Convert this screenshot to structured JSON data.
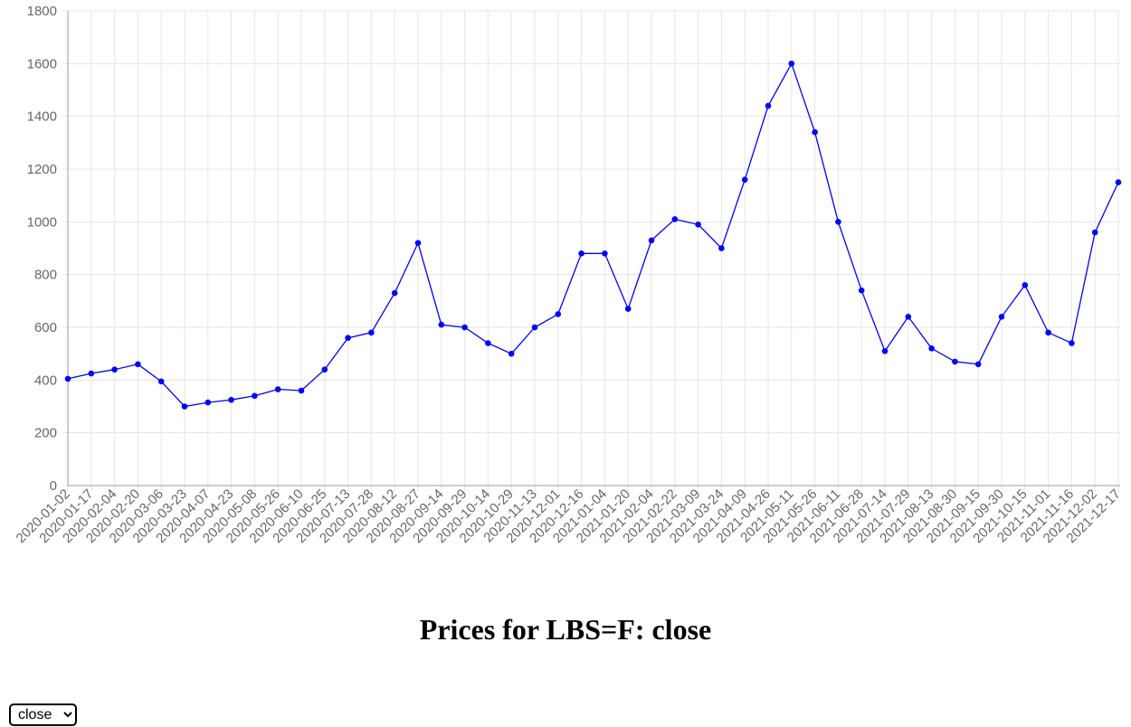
{
  "page": {
    "title": "Prices for LBS=F: close",
    "select_value": "close",
    "select_options": [
      "close"
    ]
  },
  "chart_data": {
    "type": "line",
    "title": "",
    "xlabel": "",
    "ylabel": "",
    "ylim": [
      0,
      1800
    ],
    "yticks": [
      0,
      200,
      400,
      600,
      800,
      1000,
      1200,
      1400,
      1600,
      1800
    ],
    "x_tick_labels": [
      "2020-01-02",
      "2020-01-17",
      "2020-02-04",
      "2020-02-20",
      "2020-03-06",
      "2020-03-23",
      "2020-04-07",
      "2020-04-23",
      "2020-05-08",
      "2020-05-26",
      "2020-06-10",
      "2020-06-25",
      "2020-07-13",
      "2020-07-28",
      "2020-08-12",
      "2020-08-27",
      "2020-09-14",
      "2020-09-29",
      "2020-10-14",
      "2020-10-29",
      "2020-11-13",
      "2020-12-01",
      "2020-12-16",
      "2021-01-04",
      "2021-01-20",
      "2021-02-04",
      "2021-02-22",
      "2021-03-09",
      "2021-03-24",
      "2021-04-09",
      "2021-04-26",
      "2021-05-11",
      "2021-05-26",
      "2021-06-11",
      "2021-06-28",
      "2021-07-14",
      "2021-07-29",
      "2021-08-13",
      "2021-08-30",
      "2021-09-15",
      "2021-09-30",
      "2021-10-15",
      "2021-11-01",
      "2021-11-16",
      "2021-12-02",
      "2021-12-17"
    ],
    "grid": true,
    "legend": "none",
    "line_color": "#0000ff",
    "series": [
      {
        "x": [
          "2020-01-02",
          "2020-01-17",
          "2020-02-04",
          "2020-02-20",
          "2020-03-06",
          "2020-03-23",
          "2020-04-07",
          "2020-04-23",
          "2020-05-08",
          "2020-05-26",
          "2020-06-10",
          "2020-06-25",
          "2020-07-13",
          "2020-07-28",
          "2020-08-12",
          "2020-08-27",
          "2020-09-14",
          "2020-09-29",
          "2020-10-14",
          "2020-10-29",
          "2020-11-13",
          "2020-12-01",
          "2020-12-16",
          "2021-01-04",
          "2021-01-20",
          "2021-02-04",
          "2021-02-22",
          "2021-03-09",
          "2021-03-24",
          "2021-04-09",
          "2021-04-26",
          "2021-05-11",
          "2021-05-26",
          "2021-06-11",
          "2021-06-28",
          "2021-07-14",
          "2021-07-29",
          "2021-08-13",
          "2021-08-30",
          "2021-09-15",
          "2021-09-30",
          "2021-10-15",
          "2021-11-01",
          "2021-11-16",
          "2021-12-02",
          "2021-12-17"
        ],
        "values": [
          405,
          425,
          440,
          460,
          395,
          300,
          315,
          325,
          340,
          365,
          360,
          440,
          560,
          580,
          730,
          920,
          610,
          600,
          540,
          500,
          600,
          650,
          880,
          880,
          670,
          930,
          1010,
          990,
          900,
          1160,
          1440,
          1600,
          1340,
          1000,
          740,
          510,
          640,
          520,
          470,
          460,
          640,
          760,
          580,
          540,
          960,
          1150
        ]
      }
    ]
  }
}
